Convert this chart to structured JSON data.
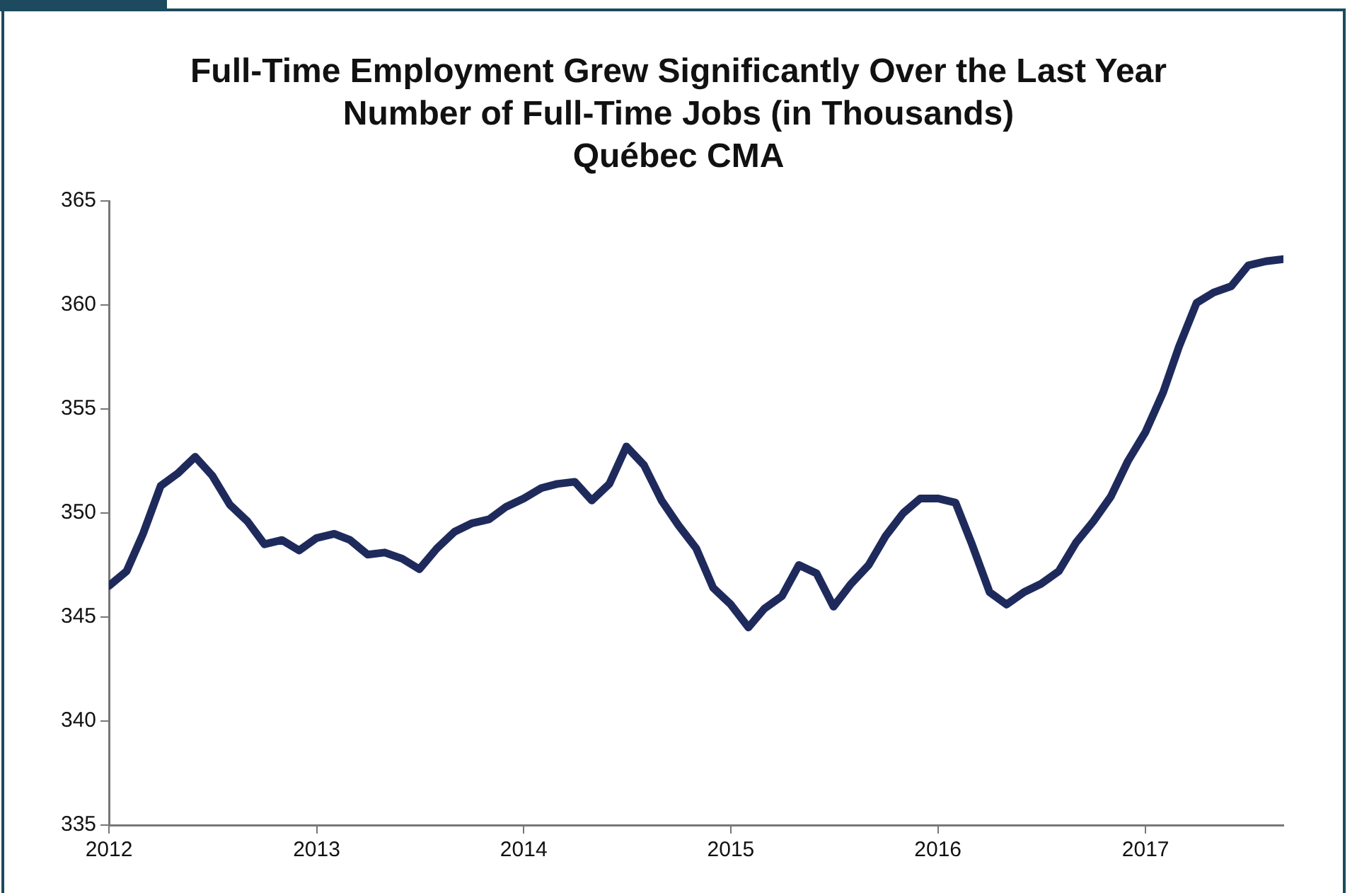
{
  "chart_data": {
    "type": "line",
    "title": "Full-Time Employment Grew Significantly Over the Last Year",
    "subtitle": "Number of Full-Time Jobs (in Thousands)\nQuébec CMA",
    "x": [
      "2012-01",
      "2012-02",
      "2012-03",
      "2012-04",
      "2012-05",
      "2012-06",
      "2012-07",
      "2012-08",
      "2012-09",
      "2012-10",
      "2012-11",
      "2012-12",
      "2013-01",
      "2013-02",
      "2013-03",
      "2013-04",
      "2013-05",
      "2013-06",
      "2013-07",
      "2013-08",
      "2013-09",
      "2013-10",
      "2013-11",
      "2013-12",
      "2014-01",
      "2014-02",
      "2014-03",
      "2014-04",
      "2014-05",
      "2014-06",
      "2014-07",
      "2014-08",
      "2014-09",
      "2014-10",
      "2014-11",
      "2014-12",
      "2015-01",
      "2015-02",
      "2015-03",
      "2015-04",
      "2015-05",
      "2015-06",
      "2015-07",
      "2015-08",
      "2015-09",
      "2015-10",
      "2015-11",
      "2015-12",
      "2016-01",
      "2016-02",
      "2016-03",
      "2016-04",
      "2016-05",
      "2016-06",
      "2016-07",
      "2016-08",
      "2016-09",
      "2016-10",
      "2016-11",
      "2016-12",
      "2017-01",
      "2017-02",
      "2017-03",
      "2017-04",
      "2017-05",
      "2017-06",
      "2017-07",
      "2017-08",
      "2017-09"
    ],
    "series": [
      {
        "color": "#1f2a5c",
        "values": [
          346.5,
          347.2,
          349.0,
          351.3,
          351.9,
          352.7,
          351.8,
          350.4,
          349.6,
          348.5,
          348.7,
          348.2,
          348.8,
          349.0,
          348.7,
          348.0,
          348.1,
          347.8,
          347.3,
          348.3,
          349.1,
          349.5,
          349.7,
          350.3,
          350.7,
          351.2,
          351.4,
          351.5,
          350.6,
          351.4,
          353.2,
          352.3,
          350.6,
          349.4,
          348.3,
          346.4,
          345.6,
          344.5,
          345.4,
          346.0,
          347.5,
          347.1,
          345.5,
          346.6,
          347.5,
          348.9,
          350.0,
          350.7,
          350.7,
          350.5,
          348.5,
          346.2,
          345.6,
          346.2,
          346.6,
          347.2,
          348.6,
          349.6,
          350.8,
          352.5,
          353.9,
          355.8,
          358.0,
          360.1,
          360.6,
          360.9,
          361.9,
          362.1,
          362.2
        ]
      }
    ],
    "xlim": [
      "2012-01",
      "2017-09"
    ],
    "xticks": [
      "2012",
      "2013",
      "2014",
      "2015",
      "2016",
      "2017"
    ],
    "ylim": [
      335,
      365
    ],
    "yticks": [
      335,
      340,
      345,
      350,
      355,
      360,
      365
    ],
    "grid": false,
    "legend": false,
    "marker": "none",
    "line_style": "solid"
  }
}
